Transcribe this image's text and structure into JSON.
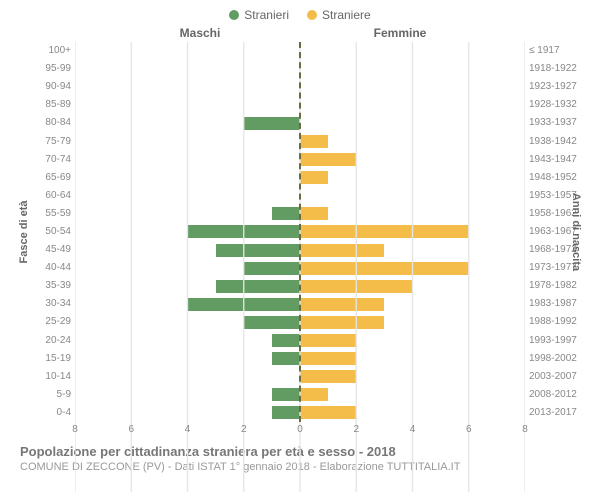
{
  "chart": {
    "type": "population-pyramid",
    "legend": [
      {
        "label": "Stranieri",
        "color": "#629c62"
      },
      {
        "label": "Straniere",
        "color": "#f4bd4a"
      }
    ],
    "column_headers": {
      "left": "Maschi",
      "right": "Femmine"
    },
    "y_left_title": "Fasce di età",
    "y_right_title": "Anni di nascita",
    "age_groups": [
      "100+",
      "95-99",
      "90-94",
      "85-89",
      "80-84",
      "75-79",
      "70-74",
      "65-69",
      "60-64",
      "55-59",
      "50-54",
      "45-49",
      "40-44",
      "35-39",
      "30-34",
      "25-29",
      "20-24",
      "15-19",
      "10-14",
      "5-9",
      "0-4"
    ],
    "birth_years": [
      "≤ 1917",
      "1918-1922",
      "1923-1927",
      "1928-1932",
      "1933-1937",
      "1938-1942",
      "1943-1947",
      "1948-1952",
      "1953-1957",
      "1958-1962",
      "1963-1967",
      "1968-1972",
      "1973-1977",
      "1978-1982",
      "1983-1987",
      "1988-1992",
      "1993-1997",
      "1998-2002",
      "2003-2007",
      "2008-2012",
      "2013-2017"
    ],
    "male_values": [
      0,
      0,
      0,
      0,
      2,
      0,
      0,
      0,
      0,
      1,
      4,
      3,
      2,
      3,
      4,
      2,
      1,
      1,
      0,
      1,
      1
    ],
    "female_values": [
      0,
      0,
      0,
      0,
      0,
      1,
      2,
      1,
      0,
      1,
      6,
      3,
      6,
      4,
      3,
      3,
      2,
      2,
      2,
      1,
      2
    ],
    "male_color": "#629c62",
    "female_color": "#f4bd4a",
    "center_line_color": "#6b6b3f",
    "x_ticks": [
      0,
      2,
      4,
      6,
      8
    ],
    "x_max": 8,
    "grid_color": "#e5e5e5",
    "background": "#ffffff",
    "tick_fontsize": 10,
    "label_fontsize": 11
  },
  "title": "Popolazione per cittadinanza straniera per età e sesso - 2018",
  "subtitle": "COMUNE DI ZECCONE (PV) - Dati ISTAT 1° gennaio 2018 - Elaborazione TUTTITALIA.IT"
}
